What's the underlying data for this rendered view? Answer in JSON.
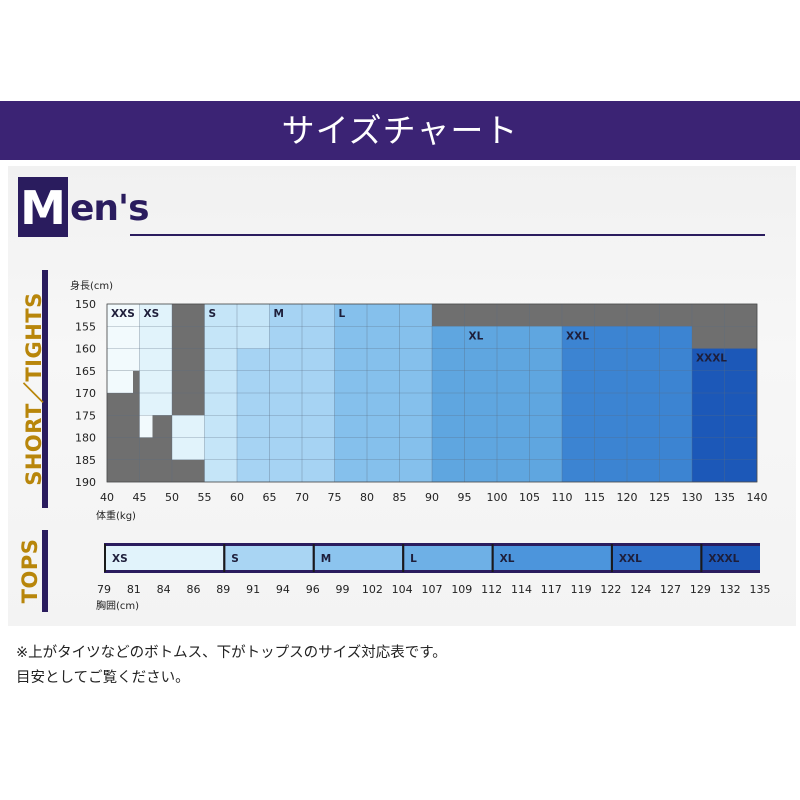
{
  "banner": {
    "title": "サイズチャート"
  },
  "logo": {
    "initial": "M",
    "rest": "en's"
  },
  "sections": {
    "bottoms_label": "SHORT／TIGHTS",
    "tops_label": "TOPS"
  },
  "notes": {
    "line1": "※上がタイツなどのボトムス、下がトップスのサイズ対応表です。",
    "line2": "目安としてご覧ください。"
  },
  "chart_data": [
    {
      "type": "heatmap",
      "title": "",
      "ylabel": "身長(cm)",
      "xlabel": "体重(kg)",
      "y": [
        150,
        155,
        160,
        165,
        170,
        175,
        180,
        185,
        190
      ],
      "x": [
        40,
        45,
        50,
        55,
        60,
        65,
        70,
        75,
        80,
        85,
        90,
        95,
        100,
        105,
        110,
        115,
        120,
        125,
        130,
        135,
        140
      ],
      "series": [
        {
          "name": "XXS",
          "rows": [
            [
              150,
              165,
              40,
              45
            ],
            [
              165,
              170,
              40,
              44
            ],
            [
              170,
              180,
              45,
              47
            ]
          ]
        },
        {
          "name": "XS",
          "rows": [
            [
              150,
              175,
              45,
              50
            ],
            [
              175,
              185,
              50,
              55
            ]
          ]
        },
        {
          "name": "S",
          "rows": [
            [
              150,
              160,
              55,
              65
            ],
            [
              160,
              190,
              55,
              60
            ]
          ]
        },
        {
          "name": "M",
          "rows": [
            [
              150,
              160,
              65,
              75
            ],
            [
              160,
              190,
              60,
              75
            ]
          ]
        },
        {
          "name": "L",
          "rows": [
            [
              150,
              160,
              75,
              90
            ],
            [
              160,
              190,
              75,
              90
            ]
          ]
        },
        {
          "name": "XL",
          "rows": [
            [
              155,
              190,
              90,
              110
            ]
          ]
        },
        {
          "name": "XXL",
          "rows": [
            [
              155,
              190,
              110,
              130
            ]
          ]
        },
        {
          "name": "XXXL",
          "rows": [
            [
              160,
              190,
              130,
              140
            ]
          ]
        }
      ],
      "size_labels": [
        {
          "text": "XXS",
          "x": 40,
          "y": 150
        },
        {
          "text": "XS",
          "x": 45,
          "y": 150
        },
        {
          "text": "S",
          "x": 55,
          "y": 150
        },
        {
          "text": "M",
          "x": 65,
          "y": 150
        },
        {
          "text": "L",
          "x": 75,
          "y": 150
        },
        {
          "text": "XL",
          "x": 95,
          "y": 155
        },
        {
          "text": "XXL",
          "x": 110,
          "y": 155
        },
        {
          "text": "XXXL",
          "x": 130,
          "y": 160
        }
      ],
      "colors": {
        "XXS": "#f2fafd",
        "XS": "#e1f3fb",
        "S": "#c5e5f8",
        "M": "#a6d3f3",
        "L": "#85c0ec",
        "XL": "#5fa6e0",
        "XXL": "#3c84d2",
        "XXXL": "#1c58b8",
        "grid_empty": "#6f6f6f"
      }
    },
    {
      "type": "bar",
      "title": "",
      "xlabel": "胸囲(cm)",
      "ticks": [
        79,
        81,
        84,
        86,
        89,
        91,
        94,
        96,
        99,
        102,
        104,
        107,
        109,
        112,
        114,
        117,
        119,
        122,
        124,
        127,
        129,
        132,
        135
      ],
      "segments": [
        {
          "name": "XS",
          "from": 79,
          "to": 89,
          "color": "#e1f3fb"
        },
        {
          "name": "S",
          "from": 89,
          "to": 96,
          "color": "#a9d5f3"
        },
        {
          "name": "M",
          "from": 96,
          "to": 104,
          "color": "#8cc4ee"
        },
        {
          "name": "L",
          "from": 104,
          "to": 112,
          "color": "#6eb0e6"
        },
        {
          "name": "XL",
          "from": 112,
          "to": 122,
          "color": "#4c95dc"
        },
        {
          "name": "XXL",
          "from": 122,
          "to": 129,
          "color": "#2e72cb"
        },
        {
          "name": "XXXL",
          "from": 129,
          "to": 135,
          "color": "#1c58b8"
        }
      ]
    }
  ]
}
